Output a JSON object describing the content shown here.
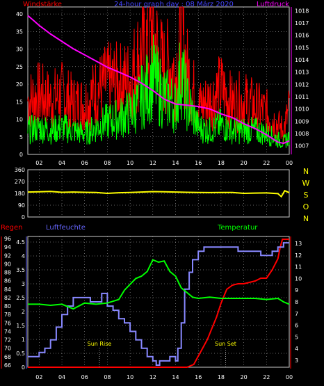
{
  "colors": {
    "background": "#000000",
    "grid": "#cccccc",
    "wind_peak": "#ff0000",
    "wind_mean": "#00ff00",
    "pressure": "#ff00ff",
    "direction": "#ffff00",
    "direction_axis": "#ffff00",
    "rain": "#ff0000",
    "humidity": "#8888ff",
    "temperature": "#00ff00",
    "sun_marker": "#ffff00"
  },
  "chart_data": [
    {
      "id": "wind-pressure",
      "type": "line",
      "title": "24-hour graph day : 08 März 2020",
      "left_label": "Windstärke",
      "right_label": "Luftdruck",
      "xlim": [
        1,
        24
      ],
      "x_ticks": [
        "02",
        "04",
        "06",
        "08",
        "10",
        "12",
        "14",
        "16",
        "18",
        "20",
        "22",
        "00"
      ],
      "ylim_left": [
        0,
        42
      ],
      "y_ticks_left": [
        "0",
        "5",
        "10",
        "15",
        "20",
        "25",
        "30",
        "35",
        "40"
      ],
      "ylim_right": [
        1006.3,
        1018.3
      ],
      "y_ticks_right": [
        "1007",
        "1008",
        "1009",
        "1010",
        "1011",
        "1012",
        "1013",
        "1014",
        "1015",
        "1016",
        "1017",
        "1018"
      ],
      "grid": true,
      "series": [
        {
          "key": "peak",
          "axis": "left",
          "style": "spiky",
          "x": [
            1,
            2,
            3,
            4,
            5,
            6,
            7,
            8,
            9,
            10,
            10.5,
            11,
            11.5,
            12,
            12.5,
            13,
            13.5,
            14,
            14.5,
            15,
            16,
            17,
            18,
            19,
            20,
            21,
            22,
            23,
            23.5,
            24
          ],
          "y": [
            18,
            20,
            18,
            20,
            17,
            17,
            21,
            24,
            24,
            25,
            30,
            34,
            36,
            42,
            32,
            28,
            30,
            26,
            42,
            28,
            16,
            18,
            22,
            17,
            18,
            16,
            14,
            10,
            8,
            15
          ]
        },
        {
          "key": "mean",
          "axis": "left",
          "style": "spiky",
          "x": [
            1,
            2,
            3,
            4,
            5,
            6,
            7,
            8,
            9,
            10,
            10.5,
            11,
            11.5,
            12,
            12.5,
            13,
            13.5,
            14,
            14.5,
            15,
            16,
            17,
            18,
            19,
            20,
            21,
            22,
            23,
            23.5,
            24
          ],
          "y": [
            8,
            9,
            8,
            9,
            8,
            7,
            9,
            11,
            12,
            14,
            16,
            19,
            22,
            26,
            22,
            19,
            18,
            16,
            28,
            18,
            9,
            8,
            10,
            8,
            8,
            8,
            7,
            5,
            4,
            6
          ]
        },
        {
          "key": "pressure",
          "axis": "right",
          "style": "line",
          "x": [
            1,
            1.5,
            2,
            3,
            4,
            5,
            6,
            7,
            8,
            9,
            10,
            11,
            12,
            13,
            14,
            15,
            16,
            17,
            18,
            19,
            20,
            21,
            22,
            22.5,
            23,
            23.5,
            24
          ],
          "y": [
            1017.6,
            1017.2,
            1016.8,
            1016.1,
            1015.5,
            1014.9,
            1014.4,
            1013.9,
            1013.4,
            1013.0,
            1012.6,
            1012.1,
            1011.5,
            1010.8,
            1010.4,
            1010.3,
            1010.2,
            1010.0,
            1009.6,
            1009.3,
            1008.8,
            1008.4,
            1007.9,
            1007.6,
            1007.3,
            1007.2,
            1007.4
          ]
        }
      ]
    },
    {
      "id": "wind-direction",
      "type": "line",
      "xlim": [
        1,
        24
      ],
      "ylim": [
        0,
        360
      ],
      "y_ticks": [
        "0",
        "90",
        "180",
        "270",
        "360"
      ],
      "compass": [
        "N",
        "W",
        "S",
        "O",
        "N"
      ],
      "grid": true,
      "series": [
        {
          "key": "direction",
          "x": [
            1,
            2,
            3,
            4,
            5,
            6,
            7,
            8,
            9,
            10,
            11,
            12,
            13,
            14,
            15,
            16,
            17,
            18,
            19,
            20,
            21,
            22,
            23,
            23.3,
            23.6,
            24
          ],
          "y": [
            190,
            192,
            195,
            188,
            190,
            188,
            187,
            180,
            185,
            187,
            190,
            193,
            192,
            190,
            188,
            187,
            186,
            187,
            187,
            180,
            182,
            183,
            178,
            155,
            200,
            185
          ]
        }
      ]
    },
    {
      "id": "rain-humidity-temperature",
      "type": "line",
      "labels": {
        "rain": "Regen",
        "humidity": "Luftfeuchte",
        "temperature": "Temperatur"
      },
      "xlim": [
        1,
        24
      ],
      "x_ticks": [
        "02",
        "04",
        "06",
        "08",
        "10",
        "12",
        "14",
        "16",
        "18",
        "20",
        "22",
        "00"
      ],
      "ylim_rain": [
        0,
        4.7
      ],
      "y_ticks_rain": [
        "0",
        "0.5",
        "1",
        "1.5",
        "2",
        "2.5",
        "3",
        "3.5",
        "4",
        "4.5"
      ],
      "ylim_humidity": [
        65.5,
        96.5
      ],
      "y_ticks_humidity": [
        "66",
        "68",
        "70",
        "72",
        "74",
        "76",
        "78",
        "80",
        "82",
        "84",
        "86",
        "88",
        "90",
        "92",
        "94",
        "96"
      ],
      "ylim_temperature": [
        2.4,
        13.6
      ],
      "y_ticks_temperature": [
        "3",
        "4",
        "5",
        "6",
        "7",
        "8",
        "9",
        "10",
        "11",
        "12",
        "13"
      ],
      "annotations": [
        {
          "text": "Sun Rise",
          "x": 7.3
        },
        {
          "text": "Sun Set",
          "x": 18.4
        }
      ],
      "grid": true,
      "series": [
        {
          "key": "rain",
          "axis": "rain",
          "style": "line",
          "x": [
            1,
            15.0,
            15.3,
            15.6,
            16.0,
            16.4,
            16.8,
            17.2,
            17.6,
            18.0,
            18.5,
            19.0,
            19.5,
            20.0,
            20.5,
            21.0,
            21.5,
            22.0,
            22.5,
            23.0,
            23.2,
            23.4,
            23.6,
            24
          ],
          "y": [
            0,
            0,
            0.05,
            0.1,
            0.4,
            0.7,
            1.0,
            1.4,
            1.8,
            2.3,
            2.8,
            2.95,
            3.0,
            3.0,
            3.05,
            3.1,
            3.2,
            3.2,
            3.5,
            3.9,
            4.3,
            4.6,
            4.6,
            4.6
          ]
        },
        {
          "key": "humidity",
          "axis": "humidity",
          "style": "step",
          "x": [
            1,
            1.5,
            2,
            2.5,
            3,
            3.5,
            4,
            4.5,
            5,
            5.5,
            6,
            6.5,
            7,
            7.5,
            8,
            8.5,
            9,
            9.5,
            10,
            10.5,
            11,
            11.5,
            12,
            12.3,
            12.6,
            13,
            13.5,
            14,
            14.2,
            14.5,
            14.8,
            15.2,
            15.5,
            16,
            16.5,
            17,
            17.5,
            18,
            18.5,
            19,
            19.5,
            20,
            20.5,
            21,
            21.5,
            22,
            22.5,
            23,
            23.5,
            24
          ],
          "y": [
            68,
            68,
            69,
            70,
            72,
            75,
            78,
            80,
            82,
            82,
            82,
            81,
            81,
            83,
            80,
            79,
            77,
            76,
            74,
            72,
            70,
            68,
            67,
            66,
            67,
            67,
            68,
            67,
            70,
            76,
            84,
            88,
            91,
            93,
            94,
            94,
            94,
            94,
            94,
            94,
            93,
            93,
            93,
            93,
            92,
            92,
            93,
            94,
            95,
            95
          ]
        },
        {
          "key": "temperature",
          "axis": "temperature",
          "style": "line",
          "x": [
            1,
            2,
            3,
            4,
            5,
            6,
            7,
            8,
            9,
            9.5,
            10,
            10.5,
            11,
            11.5,
            12,
            12.5,
            13,
            13.5,
            14,
            14.5,
            15,
            15.5,
            16,
            17,
            18,
            19,
            20,
            21,
            22,
            23,
            23.5,
            24
          ],
          "y": [
            7.8,
            7.8,
            7.7,
            7.8,
            7.4,
            7.9,
            7.8,
            7.9,
            8.2,
            9.0,
            9.5,
            10.0,
            10.2,
            10.6,
            11.6,
            11.4,
            11.5,
            10.6,
            10.2,
            9.2,
            8.8,
            8.4,
            8.3,
            8.4,
            8.3,
            8.3,
            8.3,
            8.3,
            8.2,
            8.3,
            8.0,
            7.8
          ]
        }
      ]
    }
  ]
}
